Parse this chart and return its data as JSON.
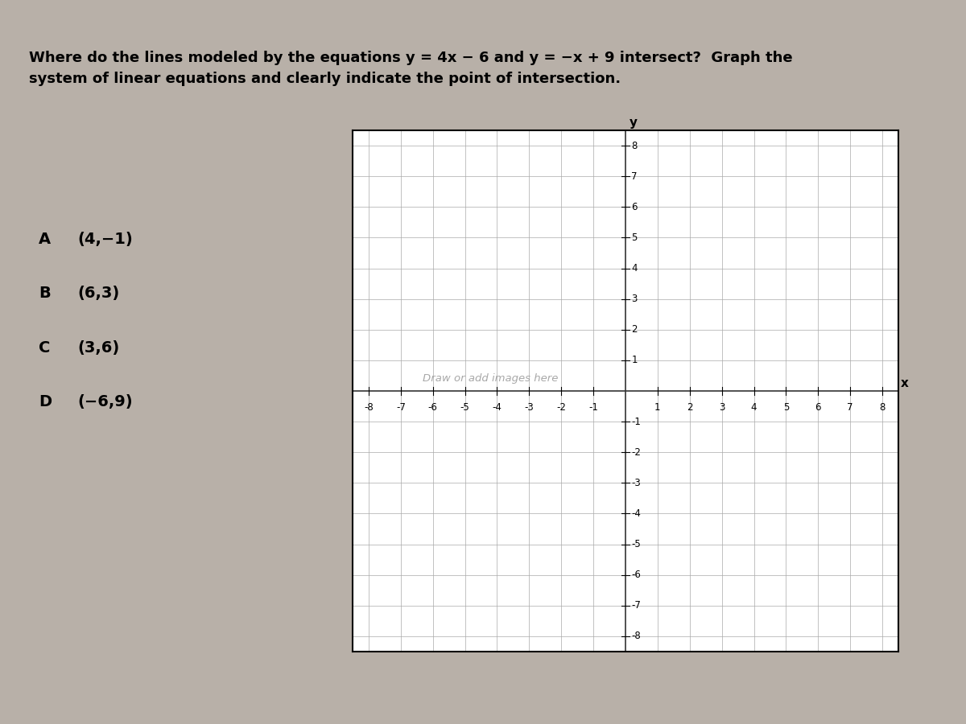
{
  "bg_color": "#b8b0a8",
  "panel_color": "#d8d0c8",
  "graph_bg": "#ffffff",
  "title_text": "Where do the lines modeled by the equations y = 4x − 6 and y = −x + 9 intersect?  Graph the\nsystem of linear equations and clearly indicate the point of intersection.",
  "choices": [
    [
      "A",
      "(4,−1)"
    ],
    [
      "B",
      "(6,3)"
    ],
    [
      "C",
      "(3,6)"
    ],
    [
      "D",
      "(−6,9)"
    ]
  ],
  "watermark": "Draw or add images here",
  "xlim": [
    -8.5,
    8.5
  ],
  "ylim": [
    -8.5,
    8.5
  ],
  "xticks": [
    -8,
    -7,
    -6,
    -5,
    -4,
    -3,
    -2,
    -1,
    1,
    2,
    3,
    4,
    5,
    6,
    7,
    8
  ],
  "yticks": [
    8,
    7,
    6,
    5,
    4,
    3,
    2,
    1,
    -1,
    -2,
    -3,
    -4,
    -5,
    -6,
    -7,
    -8
  ],
  "grid_minor_color": "#aaaaaa",
  "axis_color": "#111111",
  "tick_label_fontsize": 8.5
}
